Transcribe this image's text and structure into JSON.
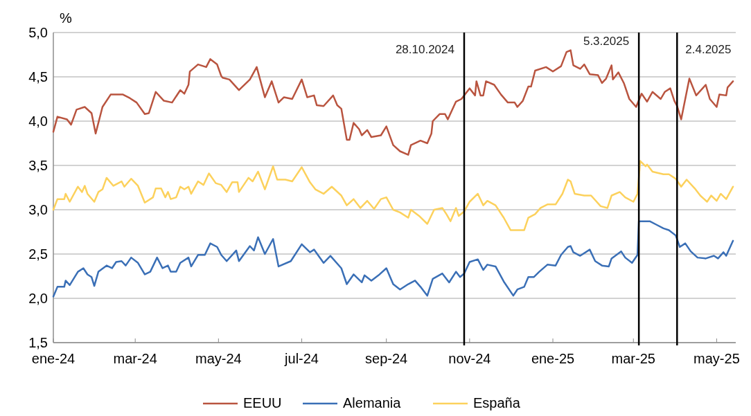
{
  "chart_data": {
    "type": "line",
    "ylabel": "%",
    "xlim": [
      "2024-01-01",
      "2025-05-15"
    ],
    "ylim": [
      1.5,
      5
    ],
    "yticks": [
      {
        "value": 1.5,
        "label": "1,5"
      },
      {
        "value": 2,
        "label": "2,0"
      },
      {
        "value": 2.5,
        "label": "2,5"
      },
      {
        "value": 3,
        "label": "3,0"
      },
      {
        "value": 3.5,
        "label": "3,5"
      },
      {
        "value": 4,
        "label": "4,0"
      },
      {
        "value": 4.5,
        "label": "4,5"
      },
      {
        "value": 5,
        "label": "5,0"
      }
    ],
    "xticks": [
      {
        "value": "2024-01-01",
        "label": "ene-24"
      },
      {
        "value": "2024-03-01",
        "label": "mar-24"
      },
      {
        "value": "2024-05-01",
        "label": "may-24"
      },
      {
        "value": "2024-07-01",
        "label": "jul-24"
      },
      {
        "value": "2024-09-01",
        "label": "sep-24"
      },
      {
        "value": "2024-11-01",
        "label": "nov-24"
      },
      {
        "value": "2025-01-01",
        "label": "ene-25"
      },
      {
        "value": "2025-03-01",
        "label": "mar-25"
      },
      {
        "value": "2025-05-01",
        "label": "may-25"
      }
    ],
    "grid": "y",
    "legend": "bottom",
    "marker": "none",
    "line_style": "solid",
    "ref_lines": [
      {
        "axis": "x",
        "value": "2024-10-28",
        "label": "28.10.2024",
        "color": "#000000"
      },
      {
        "axis": "x",
        "value": "2025-03-05",
        "label": "5.3.2025",
        "color": "#000000"
      },
      {
        "axis": "x",
        "value": "2025-04-02",
        "label": "2.4.2025",
        "color": "#000000"
      }
    ],
    "series": [
      {
        "name": "EEUU",
        "color": "#b9543f",
        "x": [
          "2024-01-01",
          "2024-01-04",
          "2024-01-11",
          "2024-01-14",
          "2024-01-18",
          "2024-01-24",
          "2024-01-29",
          "2024-02-01",
          "2024-02-06",
          "2024-02-12",
          "2024-02-21",
          "2024-02-26",
          "2024-03-02",
          "2024-03-08",
          "2024-03-11",
          "2024-03-16",
          "2024-03-22",
          "2024-03-28",
          "2024-04-03",
          "2024-04-06",
          "2024-04-09",
          "2024-04-10",
          "2024-04-16",
          "2024-04-22",
          "2024-04-25",
          "2024-04-30",
          "2024-05-03",
          "2024-05-04",
          "2024-05-09",
          "2024-05-16",
          "2024-05-24",
          "2024-05-29",
          "2024-06-04",
          "2024-06-09",
          "2024-06-14",
          "2024-06-18",
          "2024-06-24",
          "2024-07-01",
          "2024-07-05",
          "2024-07-10",
          "2024-07-12",
          "2024-07-17",
          "2024-07-24",
          "2024-07-27",
          "2024-07-30",
          "2024-08-03",
          "2024-08-05",
          "2024-08-08",
          "2024-08-12",
          "2024-08-14",
          "2024-08-18",
          "2024-08-21",
          "2024-08-28",
          "2024-09-01",
          "2024-09-06",
          "2024-09-11",
          "2024-09-17",
          "2024-09-19",
          "2024-09-26",
          "2024-10-01",
          "2024-10-04",
          "2024-10-05",
          "2024-10-10",
          "2024-10-14",
          "2024-10-16",
          "2024-10-22",
          "2024-10-26",
          "2024-11-01",
          "2024-11-05",
          "2024-11-06",
          "2024-11-09",
          "2024-11-11",
          "2024-11-13",
          "2024-11-19",
          "2024-11-24",
          "2024-11-29",
          "2024-12-04",
          "2024-12-06",
          "2024-12-10",
          "2024-12-14",
          "2024-12-16",
          "2024-12-19",
          "2024-12-27",
          "2025-01-01",
          "2025-01-07",
          "2025-01-11",
          "2025-01-14",
          "2025-01-16",
          "2025-01-21",
          "2025-01-24",
          "2025-01-28",
          "2025-02-03",
          "2025-02-06",
          "2025-02-09",
          "2025-02-13",
          "2025-02-14",
          "2025-02-18",
          "2025-02-22",
          "2025-02-26",
          "2025-03-03",
          "2025-03-07",
          "2025-03-11",
          "2025-03-15",
          "2025-03-21",
          "2025-03-24",
          "2025-03-28",
          "2025-03-31",
          "2025-04-02",
          "2025-04-05",
          "2025-04-11",
          "2025-04-16",
          "2025-04-23",
          "2025-04-26",
          "2025-05-01",
          "2025-05-03",
          "2025-05-08",
          "2025-05-09",
          "2025-05-13"
        ],
        "values": [
          3.88,
          4.05,
          4.02,
          3.96,
          4.13,
          4.16,
          4.09,
          3.86,
          4.16,
          4.3,
          4.3,
          4.26,
          4.21,
          4.08,
          4.09,
          4.33,
          4.23,
          4.21,
          4.35,
          4.31,
          4.41,
          4.56,
          4.64,
          4.61,
          4.7,
          4.64,
          4.51,
          4.49,
          4.47,
          4.35,
          4.47,
          4.61,
          4.27,
          4.45,
          4.21,
          4.27,
          4.25,
          4.47,
          4.27,
          4.29,
          4.18,
          4.17,
          4.29,
          4.18,
          4.14,
          3.79,
          3.79,
          3.98,
          3.91,
          3.84,
          3.9,
          3.82,
          3.84,
          3.94,
          3.73,
          3.66,
          3.62,
          3.73,
          3.78,
          3.75,
          3.86,
          4.0,
          4.08,
          4.08,
          4.02,
          4.22,
          4.25,
          4.37,
          4.29,
          4.45,
          4.29,
          4.29,
          4.45,
          4.41,
          4.3,
          4.21,
          4.21,
          4.16,
          4.23,
          4.39,
          4.39,
          4.57,
          4.61,
          4.56,
          4.62,
          4.78,
          4.8,
          4.63,
          4.59,
          4.64,
          4.53,
          4.52,
          4.43,
          4.48,
          4.63,
          4.47,
          4.55,
          4.43,
          4.25,
          4.16,
          4.31,
          4.22,
          4.33,
          4.25,
          4.33,
          4.37,
          4.23,
          4.17,
          4.02,
          4.48,
          4.29,
          4.41,
          4.25,
          4.16,
          4.3,
          4.29,
          4.38,
          4.45
        ]
      },
      {
        "name": "Alemania",
        "color": "#3a6fb6",
        "x": [
          "2024-01-01",
          "2024-01-04",
          "2024-01-09",
          "2024-01-10",
          "2024-01-13",
          "2024-01-19",
          "2024-01-23",
          "2024-01-26",
          "2024-01-29",
          "2024-01-31",
          "2024-02-03",
          "2024-02-09",
          "2024-02-13",
          "2024-02-16",
          "2024-02-20",
          "2024-02-23",
          "2024-02-27",
          "2024-03-03",
          "2024-03-08",
          "2024-03-12",
          "2024-03-17",
          "2024-03-21",
          "2024-03-25",
          "2024-03-27",
          "2024-03-31",
          "2024-04-03",
          "2024-04-09",
          "2024-04-11",
          "2024-04-16",
          "2024-04-21",
          "2024-04-25",
          "2024-04-30",
          "2024-05-03",
          "2024-05-07",
          "2024-05-14",
          "2024-05-16",
          "2024-05-24",
          "2024-05-27",
          "2024-05-30",
          "2024-06-04",
          "2024-06-10",
          "2024-06-14",
          "2024-06-23",
          "2024-07-01",
          "2024-07-07",
          "2024-07-10",
          "2024-07-17",
          "2024-07-22",
          "2024-07-30",
          "2024-08-03",
          "2024-08-08",
          "2024-08-14",
          "2024-08-16",
          "2024-08-21",
          "2024-08-27",
          "2024-09-01",
          "2024-09-06",
          "2024-09-11",
          "2024-09-17",
          "2024-09-22",
          "2024-09-26",
          "2024-10-01",
          "2024-10-05",
          "2024-10-12",
          "2024-10-17",
          "2024-10-22",
          "2024-10-25",
          "2024-10-28",
          "2024-11-01",
          "2024-11-07",
          "2024-11-11",
          "2024-11-14",
          "2024-11-20",
          "2024-11-26",
          "2024-12-03",
          "2024-12-06",
          "2024-12-11",
          "2024-12-14",
          "2024-12-18",
          "2024-12-22",
          "2024-12-28",
          "2025-01-03",
          "2025-01-07",
          "2025-01-12",
          "2025-01-14",
          "2025-01-16",
          "2025-01-21",
          "2025-01-28",
          "2025-02-01",
          "2025-02-06",
          "2025-02-11",
          "2025-02-13",
          "2025-02-20",
          "2025-02-23",
          "2025-02-28",
          "2025-03-04",
          "2025-03-05",
          "2025-03-13",
          "2025-03-18",
          "2025-03-23",
          "2025-03-27",
          "2025-04-01",
          "2025-04-04",
          "2025-04-08",
          "2025-04-12",
          "2025-04-17",
          "2025-04-23",
          "2025-04-29",
          "2025-05-02",
          "2025-05-06",
          "2025-05-08",
          "2025-05-13"
        ],
        "values": [
          2.02,
          2.13,
          2.13,
          2.2,
          2.15,
          2.3,
          2.34,
          2.27,
          2.24,
          2.14,
          2.3,
          2.37,
          2.34,
          2.41,
          2.42,
          2.37,
          2.46,
          2.4,
          2.27,
          2.3,
          2.46,
          2.34,
          2.37,
          2.3,
          2.3,
          2.4,
          2.46,
          2.36,
          2.49,
          2.49,
          2.62,
          2.58,
          2.49,
          2.42,
          2.54,
          2.42,
          2.59,
          2.54,
          2.69,
          2.5,
          2.67,
          2.36,
          2.42,
          2.61,
          2.52,
          2.55,
          2.4,
          2.48,
          2.34,
          2.16,
          2.27,
          2.18,
          2.26,
          2.2,
          2.27,
          2.34,
          2.16,
          2.1,
          2.16,
          2.2,
          2.13,
          2.03,
          2.22,
          2.28,
          2.18,
          2.3,
          2.24,
          2.28,
          2.41,
          2.44,
          2.32,
          2.38,
          2.36,
          2.19,
          2.03,
          2.1,
          2.13,
          2.24,
          2.24,
          2.3,
          2.38,
          2.37,
          2.49,
          2.58,
          2.59,
          2.52,
          2.48,
          2.55,
          2.42,
          2.37,
          2.36,
          2.45,
          2.53,
          2.46,
          2.4,
          2.49,
          2.87,
          2.87,
          2.83,
          2.79,
          2.77,
          2.71,
          2.58,
          2.62,
          2.53,
          2.46,
          2.45,
          2.48,
          2.45,
          2.52,
          2.48,
          2.65
        ]
      },
      {
        "name": "España",
        "color": "#fcd15c",
        "x": [
          "2024-01-01",
          "2024-01-04",
          "2024-01-09",
          "2024-01-10",
          "2024-01-13",
          "2024-01-19",
          "2024-01-22",
          "2024-01-24",
          "2024-01-26",
          "2024-01-31",
          "2024-02-03",
          "2024-02-06",
          "2024-02-09",
          "2024-02-14",
          "2024-02-20",
          "2024-02-22",
          "2024-02-27",
          "2024-03-03",
          "2024-03-08",
          "2024-03-14",
          "2024-03-16",
          "2024-03-20",
          "2024-03-23",
          "2024-03-25",
          "2024-03-27",
          "2024-03-31",
          "2024-04-03",
          "2024-04-06",
          "2024-04-09",
          "2024-04-11",
          "2024-04-16",
          "2024-04-20",
          "2024-04-24",
          "2024-04-29",
          "2024-05-03",
          "2024-05-07",
          "2024-05-11",
          "2024-05-15",
          "2024-05-16",
          "2024-05-23",
          "2024-05-26",
          "2024-05-30",
          "2024-06-04",
          "2024-06-10",
          "2024-06-13",
          "2024-06-19",
          "2024-06-24",
          "2024-07-01",
          "2024-07-07",
          "2024-07-11",
          "2024-07-17",
          "2024-07-23",
          "2024-07-30",
          "2024-08-03",
          "2024-08-08",
          "2024-08-13",
          "2024-08-18",
          "2024-08-23",
          "2024-08-28",
          "2024-09-01",
          "2024-09-06",
          "2024-09-11",
          "2024-09-17",
          "2024-09-19",
          "2024-09-25",
          "2024-10-01",
          "2024-10-06",
          "2024-10-12",
          "2024-10-15",
          "2024-10-18",
          "2024-10-22",
          "2024-10-24",
          "2024-10-28",
          "2024-11-01",
          "2024-11-07",
          "2024-11-11",
          "2024-11-14",
          "2024-11-20",
          "2024-11-26",
          "2024-12-01",
          "2024-12-06",
          "2024-12-11",
          "2024-12-14",
          "2024-12-19",
          "2024-12-23",
          "2024-12-28",
          "2025-01-03",
          "2025-01-08",
          "2025-01-12",
          "2025-01-14",
          "2025-01-17",
          "2025-01-24",
          "2025-01-29",
          "2025-02-05",
          "2025-02-10",
          "2025-02-13",
          "2025-02-19",
          "2025-02-23",
          "2025-03-01",
          "2025-03-04",
          "2025-03-06",
          "2025-03-10",
          "2025-03-11",
          "2025-03-15",
          "2025-03-23",
          "2025-03-27",
          "2025-04-01",
          "2025-04-05",
          "2025-04-09",
          "2025-04-15",
          "2025-04-19",
          "2025-04-24",
          "2025-04-27",
          "2025-05-01",
          "2025-05-04",
          "2025-05-08",
          "2025-05-13"
        ],
        "values": [
          3.0,
          3.12,
          3.12,
          3.18,
          3.09,
          3.26,
          3.2,
          3.27,
          3.18,
          3.09,
          3.2,
          3.23,
          3.36,
          3.27,
          3.32,
          3.26,
          3.35,
          3.27,
          3.08,
          3.14,
          3.24,
          3.24,
          3.14,
          3.2,
          3.12,
          3.14,
          3.26,
          3.23,
          3.26,
          3.18,
          3.32,
          3.28,
          3.41,
          3.3,
          3.28,
          3.2,
          3.31,
          3.31,
          3.2,
          3.36,
          3.32,
          3.43,
          3.23,
          3.49,
          3.34,
          3.34,
          3.32,
          3.48,
          3.31,
          3.23,
          3.18,
          3.26,
          3.16,
          3.05,
          3.12,
          3.02,
          3.1,
          3.01,
          3.12,
          3.14,
          3.0,
          2.97,
          2.91,
          3.0,
          2.93,
          2.84,
          3.0,
          3.02,
          2.95,
          2.87,
          3.02,
          2.93,
          2.98,
          3.09,
          3.18,
          3.05,
          3.1,
          3.05,
          2.91,
          2.77,
          2.77,
          2.77,
          2.91,
          2.95,
          3.02,
          3.06,
          3.06,
          3.18,
          3.34,
          3.32,
          3.18,
          3.16,
          3.16,
          3.04,
          3.02,
          3.16,
          3.2,
          3.14,
          3.09,
          3.18,
          3.55,
          3.49,
          3.51,
          3.43,
          3.4,
          3.4,
          3.35,
          3.26,
          3.34,
          3.24,
          3.16,
          3.09,
          3.16,
          3.1,
          3.18,
          3.12,
          3.26
        ]
      }
    ]
  }
}
